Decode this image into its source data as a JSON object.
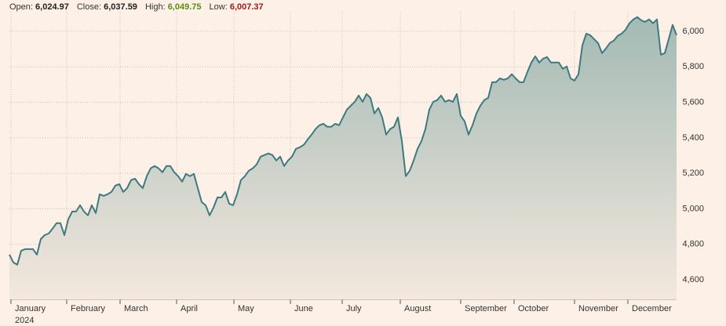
{
  "chart_data": {
    "type": "area",
    "header_stats": [
      {
        "label": "Open:",
        "text": "6,024.97",
        "color": "#222222"
      },
      {
        "label": "Close:",
        "text": "6,037.59",
        "color": "#222222"
      },
      {
        "label": "High:",
        "text": "6,049.75",
        "color": "#5b8c14"
      },
      {
        "label": "Low:",
        "text": "6,007.37",
        "color": "#a01c1c"
      }
    ],
    "year_label": "2024",
    "color": "#3d7a80",
    "fill_top": "#a3bab4",
    "fill_bottom": "#f3e8de",
    "grid": true,
    "values": [
      4742,
      4698,
      4685,
      4764,
      4773,
      4773,
      4773,
      4742,
      4830,
      4852,
      4861,
      4888,
      4919,
      4919,
      4852,
      4941,
      4985,
      4985,
      5020,
      4985,
      4963,
      5020,
      4976,
      5082,
      5073,
      5082,
      5095,
      5131,
      5139,
      5095,
      5117,
      5162,
      5170,
      5139,
      5117,
      5184,
      5228,
      5241,
      5228,
      5206,
      5241,
      5241,
      5206,
      5184,
      5153,
      5197,
      5184,
      5197,
      5117,
      5038,
      5020,
      4963,
      5007,
      5064,
      5064,
      5095,
      5029,
      5020,
      5082,
      5162,
      5184,
      5215,
      5228,
      5250,
      5294,
      5303,
      5312,
      5303,
      5272,
      5294,
      5241,
      5272,
      5294,
      5338,
      5347,
      5360,
      5391,
      5418,
      5449,
      5471,
      5479,
      5462,
      5462,
      5479,
      5471,
      5515,
      5559,
      5581,
      5603,
      5638,
      5603,
      5647,
      5625,
      5537,
      5568,
      5515,
      5418,
      5449,
      5462,
      5515,
      5382,
      5184,
      5215,
      5272,
      5338,
      5382,
      5449,
      5559,
      5603,
      5612,
      5638,
      5603,
      5612,
      5603,
      5647,
      5524,
      5493,
      5418,
      5471,
      5537,
      5581,
      5612,
      5625,
      5713,
      5713,
      5735,
      5727,
      5735,
      5758,
      5735,
      5713,
      5713,
      5771,
      5824,
      5859,
      5824,
      5846,
      5855,
      5824,
      5824,
      5824,
      5788,
      5802,
      5735,
      5722,
      5758,
      5921,
      5987,
      5978,
      5956,
      5934,
      5877,
      5903,
      5934,
      5947,
      5974,
      5987,
      6009,
      6045,
      6067,
      6080,
      6062,
      6053,
      6067,
      6045,
      6067,
      5868,
      5877,
      5956,
      6036,
      5978
    ],
    "xlim": [
      0,
      170
    ],
    "xticks": [
      {
        "value": 0.4,
        "label": "January"
      },
      {
        "value": 14.6,
        "label": "February"
      },
      {
        "value": 28.2,
        "label": "March"
      },
      {
        "value": 42.6,
        "label": "April"
      },
      {
        "value": 57.2,
        "label": "May"
      },
      {
        "value": 71.6,
        "label": "June"
      },
      {
        "value": 84.8,
        "label": "July"
      },
      {
        "value": 99.6,
        "label": "August"
      },
      {
        "value": 115,
        "label": "September"
      },
      {
        "value": 128.6,
        "label": "October"
      },
      {
        "value": 144,
        "label": "November"
      },
      {
        "value": 157.6,
        "label": "December"
      }
    ],
    "ylim": [
      4490,
      6110
    ],
    "yticks": [
      {
        "value": 4600,
        "label": "4,600"
      },
      {
        "value": 4800,
        "label": "4,800"
      },
      {
        "value": 5000,
        "label": "5,000"
      },
      {
        "value": 5200,
        "label": "5,200"
      },
      {
        "value": 5400,
        "label": "5,400"
      },
      {
        "value": 5600,
        "label": "5,600"
      },
      {
        "value": 5800,
        "label": "5,800"
      },
      {
        "value": 6000,
        "label": "6,000"
      }
    ]
  }
}
